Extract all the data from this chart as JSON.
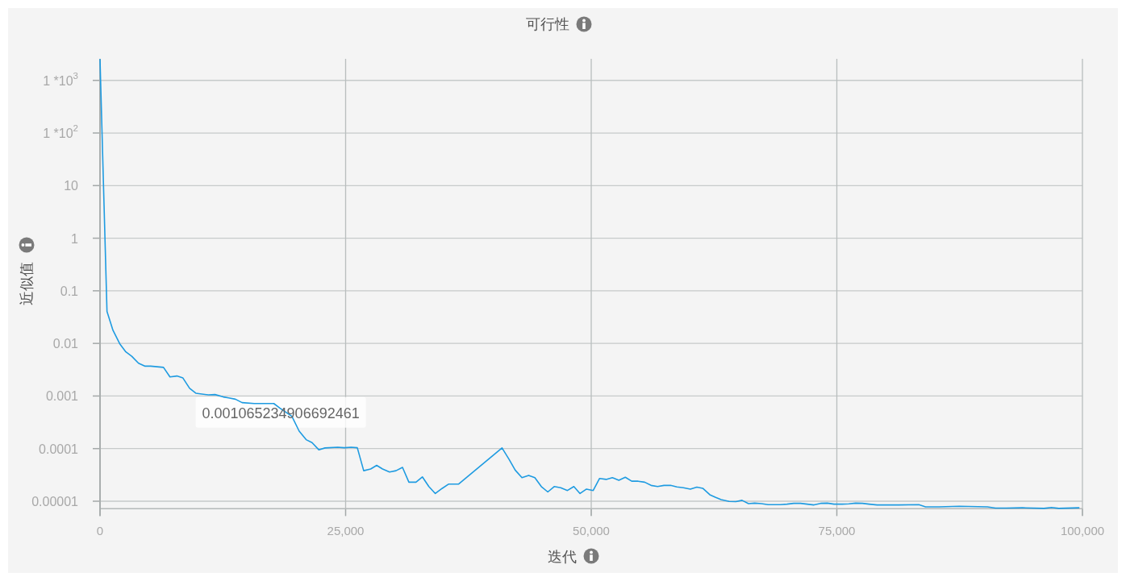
{
  "chart_data": {
    "type": "line",
    "title": "可行性",
    "xlabel": "迭代",
    "ylabel": "近似值",
    "color": "#1e9be1",
    "x": [
      0,
      710,
      1320,
      2000,
      2630,
      3230,
      3920,
      4550,
      5150,
      6460,
      7120,
      7830,
      8440,
      9120,
      9750,
      11040,
      11700,
      12550,
      13090,
      13780,
      14460,
      15690,
      17690,
      18300,
      19530,
      20270,
      20980,
      21580,
      22270,
      22900,
      24190,
      24870,
      25560,
      26190,
      26840,
      27550,
      28160,
      28760,
      29470,
      30130,
      30790,
      31440,
      32160,
      32810,
      33470,
      34130,
      34840,
      35500,
      36510,
      40920,
      41630,
      42260,
      42950,
      43630,
      44260,
      44920,
      45580,
      46230,
      46890,
      47580,
      48230,
      48860,
      49520,
      50200,
      50840,
      51520,
      52150,
      52810,
      53470,
      54120,
      54780,
      55440,
      56090,
      56750,
      57410,
      58070,
      58720,
      59380,
      60090,
      60750,
      61350,
      62070,
      62670,
      63220,
      64040,
      64720,
      65350,
      66010,
      66640,
      67320,
      68010,
      69240,
      69930,
      70610,
      71300,
      71980,
      72670,
      73350,
      74030,
      74720,
      75540,
      76230,
      76910,
      77600,
      78280,
      79100,
      81290,
      83350,
      84030,
      85400,
      87460,
      90330,
      91150,
      92250,
      93890,
      96080,
      96850,
      97590,
      99640
    ],
    "values": [
      2500,
      0.0405,
      0.0177,
      0.0099,
      0.0069,
      0.0057,
      0.0042,
      0.0037,
      0.0037,
      0.0035,
      0.0023,
      0.0024,
      0.0022,
      0.0014,
      0.00113,
      0.00105,
      0.001065234906692461,
      0.00096,
      0.00092,
      0.00087,
      0.00075,
      0.00072,
      0.00072,
      0.00059,
      0.00041,
      0.000215,
      0.000148,
      0.00013,
      9.5e-05,
      0.000103,
      0.000106,
      0.000104,
      0.000106,
      0.000104,
      3.8e-05,
      4.1e-05,
      4.8e-05,
      4.1e-05,
      3.6e-05,
      3.8e-05,
      4.4e-05,
      2.3e-05,
      2.3e-05,
      2.9e-05,
      1.9e-05,
      1.4e-05,
      1.76e-05,
      2.12e-05,
      2.12e-05,
      0.000103,
      6.3e-05,
      3.9e-05,
      2.8e-05,
      3.1e-05,
      2.8e-05,
      1.9e-05,
      1.5e-05,
      1.9e-05,
      1.8e-05,
      1.6e-05,
      1.9e-05,
      1.4e-05,
      1.7e-05,
      1.6e-05,
      2.7e-05,
      2.6e-05,
      2.8e-05,
      2.5e-05,
      2.85e-05,
      2.4e-05,
      2.4e-05,
      2.3e-05,
      2e-05,
      1.9e-05,
      2e-05,
      2e-05,
      1.87e-05,
      1.8e-05,
      1.7e-05,
      1.85e-05,
      1.76e-05,
      1.33e-05,
      1.18e-05,
      1.07e-05,
      9.9e-06,
      9.8e-06,
      1.04e-05,
      9e-06,
      9.2e-06,
      9e-06,
      8.6e-06,
      8.6e-06,
      8.8e-06,
      9.1e-06,
      9.1e-06,
      8.8e-06,
      8.5e-06,
      9.1e-06,
      9.2e-06,
      8.8e-06,
      8.8e-06,
      8.9e-06,
      9.2e-06,
      9.1e-06,
      8.8e-06,
      8.5e-06,
      8.5e-06,
      8.6e-06,
      7.8e-06,
      7.8e-06,
      8e-06,
      7.8e-06,
      7.4e-06,
      7.4e-06,
      7.5e-06,
      7.3e-06,
      7.6e-06,
      7.3e-06,
      7.5e-06
    ],
    "xlim": [
      0,
      100000
    ],
    "xticks": [
      0,
      {
        "value": 25000,
        "label": "25,000"
      },
      {
        "value": 50000,
        "label": "50,000"
      },
      {
        "value": 75000,
        "label": "75,000"
      },
      {
        "value": 100000,
        "label": "100,000"
      }
    ],
    "ylim": [
      7.2e-06,
      2570
    ],
    "yticks": [
      {
        "value": 1e-05,
        "label": "0.00001"
      },
      0.0001,
      0.001,
      0.01,
      0.1,
      1,
      10,
      {
        "value": 100,
        "label": "1 *10$^{2}$"
      },
      {
        "value": 1000,
        "label": "1 *10$^{3}$"
      }
    ],
    "log": true,
    "grid": true,
    "annotations": [
      {
        "text": "0.001065234906692461",
        "x": 11700,
        "y": 0.001065234906692461
      }
    ]
  }
}
